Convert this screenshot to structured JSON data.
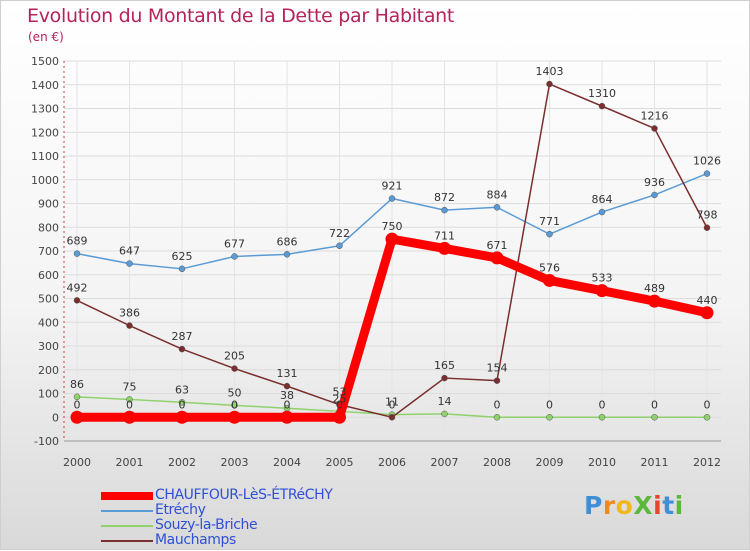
{
  "title": "Evolution du Montant de la Dette par Habitant",
  "unit": "(en €)",
  "logo": {
    "text": "ProXiti",
    "colors": [
      "#3f8fd8",
      "#f08a1c",
      "#f0b81c",
      "#5cb83c",
      "#e8442c",
      "#3f8fd8",
      "#5cb83c"
    ]
  },
  "chart_data": {
    "type": "line",
    "x": [
      2000,
      2001,
      2002,
      2003,
      2004,
      2005,
      2006,
      2007,
      2008,
      2009,
      2010,
      2011,
      2012
    ],
    "ylim": [
      -100,
      1500
    ],
    "yticks": [
      -100,
      0,
      100,
      200,
      300,
      400,
      500,
      600,
      700,
      800,
      900,
      1000,
      1100,
      1200,
      1300,
      1400,
      1500
    ],
    "grid": true,
    "legend": "bottom-left",
    "series": [
      {
        "name": "Etréchy",
        "color": "#5b9bd5",
        "emphasis": false,
        "values": [
          689,
          647,
          625,
          677,
          686,
          722,
          921,
          872,
          884,
          771,
          864,
          936,
          1026
        ]
      },
      {
        "name": "Souzy-la-Briche",
        "color": "#8ed26b",
        "emphasis": false,
        "values": [
          86,
          75,
          63,
          50,
          38,
          25,
          11,
          14,
          0,
          0,
          0,
          0,
          0
        ]
      },
      {
        "name": "Mauchamps",
        "color": "#7a2e2e",
        "emphasis": false,
        "values": [
          492,
          386,
          287,
          205,
          131,
          53,
          0,
          165,
          154,
          1403,
          1310,
          1216,
          798
        ]
      },
      {
        "name": "CHAUFFOUR-LèS-ÉTRéCHY",
        "color": "#ff0000",
        "emphasis": true,
        "values": [
          0,
          0,
          0,
          0,
          0,
          0,
          750,
          711,
          671,
          576,
          533,
          489,
          440
        ]
      }
    ]
  }
}
